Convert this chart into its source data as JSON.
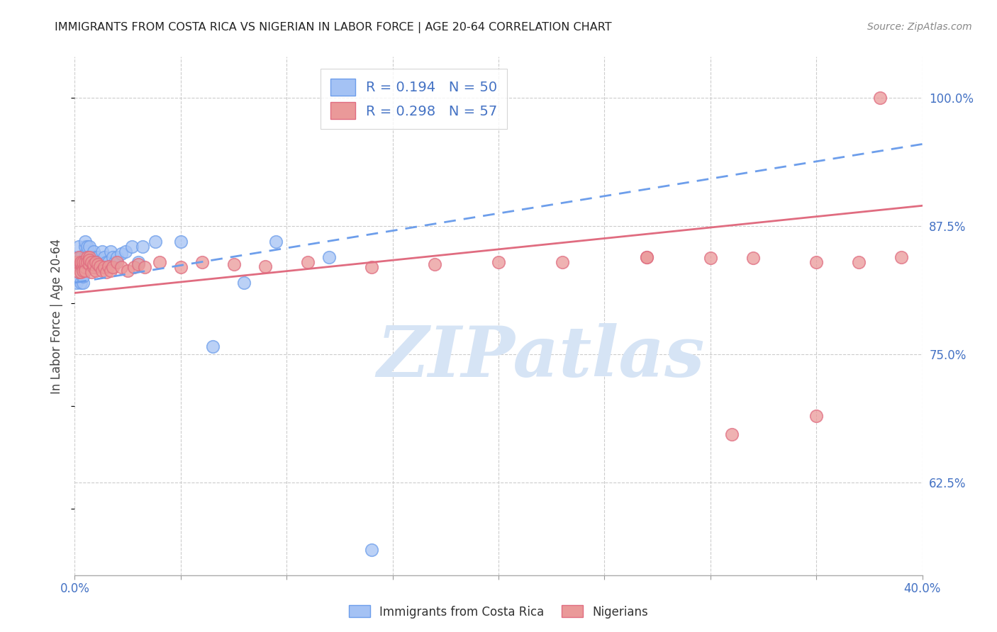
{
  "title": "IMMIGRANTS FROM COSTA RICA VS NIGERIAN IN LABOR FORCE | AGE 20-64 CORRELATION CHART",
  "source": "Source: ZipAtlas.com",
  "ylabel": "In Labor Force | Age 20-64",
  "y_ticks": [
    0.625,
    0.75,
    0.875,
    1.0
  ],
  "y_tick_labels": [
    "62.5%",
    "75.0%",
    "87.5%",
    "100.0%"
  ],
  "x_ticks": [
    0.0,
    0.05,
    0.1,
    0.15,
    0.2,
    0.25,
    0.3,
    0.35,
    0.4
  ],
  "x_tick_labels": [
    "0.0%",
    "",
    "",
    "",
    "",
    "",
    "",
    "",
    "40.0%"
  ],
  "xlim": [
    0.0,
    0.4
  ],
  "ylim": [
    0.535,
    1.04
  ],
  "legend_R1": "R = 0.194",
  "legend_N1": "N = 50",
  "legend_R2": "R = 0.298",
  "legend_N2": "N = 57",
  "color_blue_fill": "#a4c2f4",
  "color_blue_edge": "#6d9eeb",
  "color_pink_fill": "#ea9999",
  "color_pink_edge": "#e06c80",
  "color_trend_blue": "#6d9eeb",
  "color_trend_pink": "#e06c80",
  "color_axis_labels": "#4472c4",
  "color_legend_values": "#4472c4",
  "watermark_text": "ZIPatlas",
  "watermark_color": "#d6e4f5",
  "costa_rica_x": [
    0.001,
    0.002,
    0.002,
    0.003,
    0.003,
    0.003,
    0.003,
    0.004,
    0.004,
    0.004,
    0.004,
    0.005,
    0.005,
    0.005,
    0.005,
    0.006,
    0.006,
    0.006,
    0.007,
    0.007,
    0.007,
    0.008,
    0.008,
    0.009,
    0.009,
    0.01,
    0.01,
    0.011,
    0.011,
    0.012,
    0.013,
    0.014,
    0.015,
    0.016,
    0.017,
    0.018,
    0.019,
    0.02,
    0.022,
    0.024,
    0.027,
    0.03,
    0.032,
    0.038,
    0.05,
    0.065,
    0.08,
    0.095,
    0.12,
    0.14
  ],
  "costa_rica_y": [
    0.82,
    0.845,
    0.855,
    0.835,
    0.84,
    0.845,
    0.82,
    0.828,
    0.832,
    0.82,
    0.826,
    0.84,
    0.845,
    0.855,
    0.86,
    0.84,
    0.85,
    0.855,
    0.835,
    0.845,
    0.855,
    0.84,
    0.845,
    0.84,
    0.85,
    0.835,
    0.845,
    0.84,
    0.845,
    0.84,
    0.85,
    0.845,
    0.84,
    0.84,
    0.85,
    0.845,
    0.84,
    0.845,
    0.848,
    0.85,
    0.855,
    0.84,
    0.855,
    0.86,
    0.86,
    0.758,
    0.82,
    0.86,
    0.845,
    0.56
  ],
  "nigerian_x": [
    0.001,
    0.002,
    0.002,
    0.003,
    0.003,
    0.003,
    0.004,
    0.004,
    0.004,
    0.005,
    0.005,
    0.005,
    0.006,
    0.006,
    0.007,
    0.007,
    0.007,
    0.008,
    0.008,
    0.009,
    0.009,
    0.01,
    0.01,
    0.011,
    0.012,
    0.013,
    0.014,
    0.015,
    0.016,
    0.017,
    0.018,
    0.02,
    0.022,
    0.025,
    0.028,
    0.03,
    0.033,
    0.04,
    0.05,
    0.06,
    0.075,
    0.09,
    0.11,
    0.14,
    0.17,
    0.2,
    0.23,
    0.27,
    0.3,
    0.32,
    0.35,
    0.37,
    0.39,
    0.35,
    0.31,
    0.27,
    0.38
  ],
  "nigerian_y": [
    0.84,
    0.83,
    0.845,
    0.838,
    0.83,
    0.84,
    0.836,
    0.832,
    0.84,
    0.835,
    0.84,
    0.832,
    0.845,
    0.84,
    0.845,
    0.838,
    0.842,
    0.83,
    0.84,
    0.835,
    0.838,
    0.84,
    0.832,
    0.838,
    0.836,
    0.832,
    0.835,
    0.83,
    0.836,
    0.832,
    0.835,
    0.84,
    0.835,
    0.832,
    0.835,
    0.838,
    0.835,
    0.84,
    0.835,
    0.84,
    0.838,
    0.836,
    0.84,
    0.835,
    0.838,
    0.84,
    0.84,
    0.845,
    0.844,
    0.844,
    0.84,
    0.84,
    0.845,
    0.69,
    0.672,
    0.845,
    1.0
  ],
  "trend_blue_x0": 0.0,
  "trend_blue_x1": 0.4,
  "trend_blue_y0": 0.82,
  "trend_blue_y1": 0.955,
  "trend_pink_x0": 0.0,
  "trend_pink_x1": 0.4,
  "trend_pink_y0": 0.81,
  "trend_pink_y1": 0.895
}
